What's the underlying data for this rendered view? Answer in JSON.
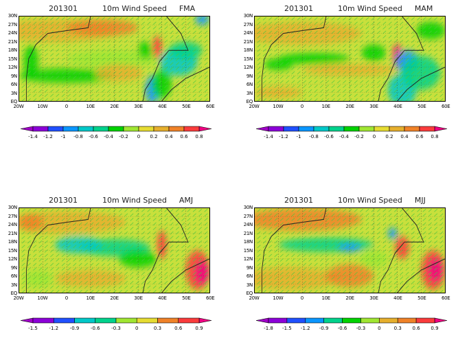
{
  "axes": {
    "lat_ticks": [
      "30N",
      "27N",
      "24N",
      "21N",
      "18N",
      "15N",
      "12N",
      "9N",
      "6N",
      "3N",
      "EQ"
    ],
    "lon_ticks": [
      "20W",
      "10W",
      "0",
      "10E",
      "20E",
      "30E",
      "40E",
      "50E",
      "60E"
    ]
  },
  "panels": [
    {
      "date": "201301",
      "variable": "10m Wind Speed",
      "season": "FMA",
      "colorbar": {
        "labels": [
          "-1.4",
          "-1.2",
          "-1",
          "-0.8",
          "-0.6",
          "-0.4",
          "-0.2",
          "0",
          "0.2",
          "0.4",
          "0.6",
          "0.8"
        ],
        "colors": [
          "#8c00d8",
          "#2050ff",
          "#0a96ff",
          "#00c8c8",
          "#00d28c",
          "#00d200",
          "#a0e632",
          "#e6dc32",
          "#e6af2d",
          "#f08228",
          "#fa3c3c"
        ],
        "under": "#a000c8",
        "over": "#f00082"
      }
    },
    {
      "date": "201301",
      "variable": "10m Wind Speed",
      "season": "MAM",
      "colorbar": {
        "labels": [
          "-1.4",
          "-1.2",
          "-1",
          "-0.8",
          "-0.6",
          "-0.4",
          "-0.2",
          "0",
          "0.2",
          "0.4",
          "0.6",
          "0.8"
        ],
        "colors": [
          "#8c00d8",
          "#2050ff",
          "#0a96ff",
          "#00c8c8",
          "#00d28c",
          "#00d200",
          "#a0e632",
          "#e6dc32",
          "#e6af2d",
          "#f08228",
          "#fa3c3c"
        ],
        "under": "#a000c8",
        "over": "#f00082"
      }
    },
    {
      "date": "201301",
      "variable": "10m Wind Speed",
      "season": "AMJ",
      "colorbar": {
        "labels": [
          "-1.5",
          "-1.2",
          "-0.9",
          "-0.6",
          "-0.3",
          "0",
          "0.3",
          "0.6",
          "0.9"
        ],
        "colors": [
          "#8c00d8",
          "#2050ff",
          "#00c8c8",
          "#00d28c",
          "#a0e632",
          "#e6dc32",
          "#f08228",
          "#fa3c3c"
        ],
        "under": "#a000c8",
        "over": "#f00082"
      }
    },
    {
      "date": "201301",
      "variable": "10m Wind Speed",
      "season": "MJJ",
      "colorbar": {
        "labels": [
          "-1.8",
          "-1.5",
          "-1.2",
          "-0.9",
          "-0.6",
          "-0.3",
          "0",
          "0.3",
          "0.6",
          "0.9"
        ],
        "colors": [
          "#8c00d8",
          "#2050ff",
          "#0a96ff",
          "#00d28c",
          "#00d200",
          "#a0e632",
          "#e6af2d",
          "#f08228",
          "#fa3c3c"
        ],
        "under": "#a000c8",
        "over": "#f00082"
      }
    }
  ]
}
